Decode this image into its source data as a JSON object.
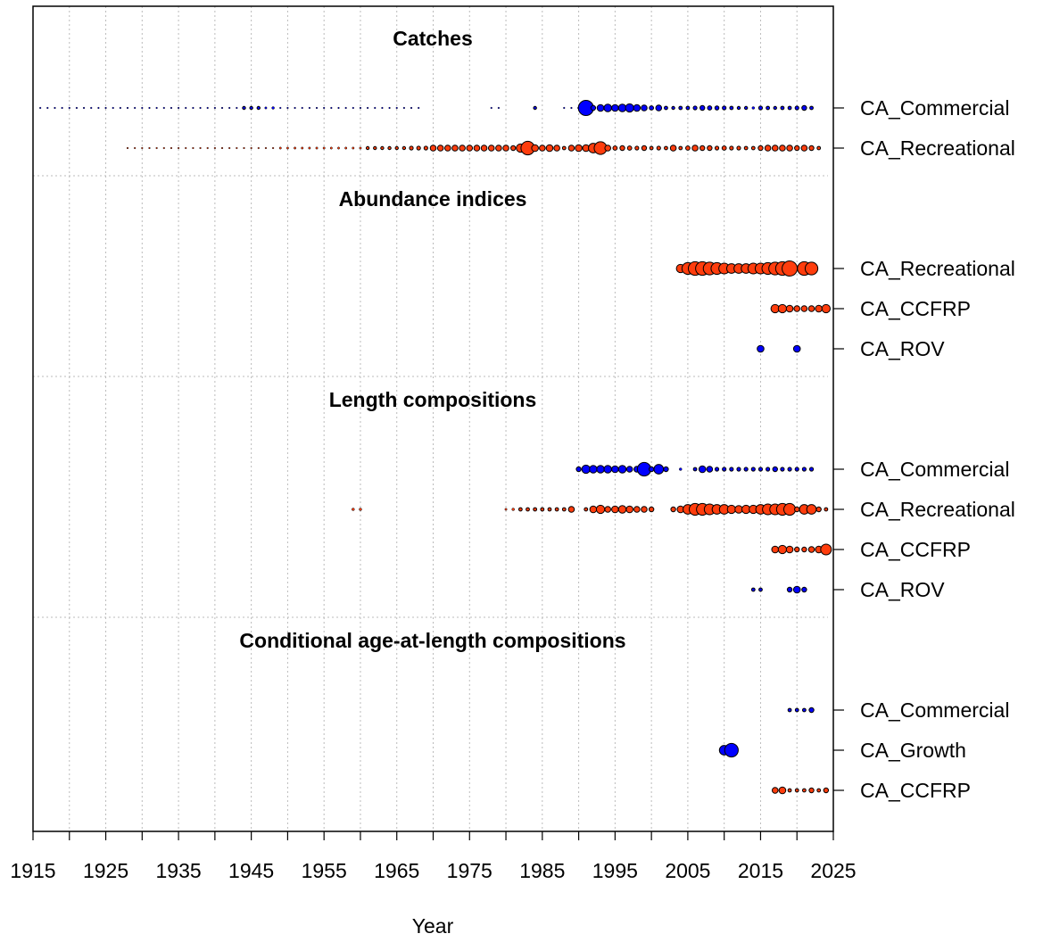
{
  "chart_data": {
    "type": "bubble",
    "xlabel": "Year",
    "xlim": [
      1915,
      2025
    ],
    "xticks": [
      1915,
      1925,
      1935,
      1945,
      1955,
      1965,
      1975,
      1985,
      1995,
      2005,
      2015,
      2025
    ],
    "minor_xticks": [
      1920,
      1930,
      1940,
      1950,
      1960,
      1970,
      1980,
      1990,
      2000,
      2010,
      2020
    ],
    "grid": true,
    "groups": [
      {
        "title": "Catches",
        "series": [
          {
            "name": "CA_Commercial",
            "color": "#0000ff",
            "x": [
              1916,
              1917,
              1918,
              1919,
              1920,
              1921,
              1922,
              1923,
              1924,
              1925,
              1926,
              1927,
              1928,
              1929,
              1930,
              1931,
              1932,
              1933,
              1934,
              1935,
              1936,
              1937,
              1938,
              1939,
              1940,
              1941,
              1942,
              1943,
              1944,
              1945,
              1946,
              1947,
              1948,
              1949,
              1950,
              1951,
              1952,
              1953,
              1954,
              1955,
              1956,
              1957,
              1958,
              1959,
              1960,
              1961,
              1962,
              1963,
              1964,
              1965,
              1966,
              1967,
              1968,
              1978,
              1979,
              1984,
              1988,
              1989,
              1990,
              1991,
              1992,
              1993,
              1994,
              1995,
              1996,
              1997,
              1998,
              1999,
              2000,
              2001,
              2002,
              2003,
              2004,
              2005,
              2006,
              2007,
              2008,
              2009,
              2010,
              2011,
              2012,
              2013,
              2014,
              2015,
              2016,
              2017,
              2018,
              2019,
              2020,
              2021,
              2022
            ],
            "values": [
              0.01,
              0.01,
              0.01,
              0.01,
              0.01,
              0.01,
              0.01,
              0.01,
              0.01,
              0.01,
              0.01,
              0.01,
              0.01,
              0.01,
              0.01,
              0.01,
              0.01,
              0.01,
              0.01,
              0.01,
              0.01,
              0.01,
              0.01,
              0.01,
              0.01,
              0.01,
              0.01,
              0.01,
              0.04,
              0.04,
              0.04,
              0.02,
              0.03,
              0.01,
              0.01,
              0.01,
              0.01,
              0.01,
              0.01,
              0.01,
              0.01,
              0.01,
              0.01,
              0.01,
              0.01,
              0.01,
              0.01,
              0.01,
              0.01,
              0.01,
              0.01,
              0.01,
              0.01,
              0.01,
              0.01,
              0.04,
              0.01,
              0.01,
              0.02,
              1.0,
              0.1,
              0.2,
              0.25,
              0.2,
              0.25,
              0.3,
              0.2,
              0.15,
              0.08,
              0.15,
              0.05,
              0.04,
              0.05,
              0.05,
              0.06,
              0.1,
              0.08,
              0.07,
              0.06,
              0.05,
              0.04,
              0.04,
              0.03,
              0.06,
              0.05,
              0.04,
              0.05,
              0.05,
              0.06,
              0.1,
              0.05
            ]
          },
          {
            "name": "CA_Recreational",
            "color": "#ff3d0d",
            "x": [
              1928,
              1929,
              1930,
              1931,
              1932,
              1933,
              1934,
              1935,
              1936,
              1937,
              1938,
              1939,
              1940,
              1941,
              1942,
              1943,
              1944,
              1945,
              1946,
              1947,
              1948,
              1949,
              1950,
              1951,
              1952,
              1953,
              1954,
              1955,
              1956,
              1957,
              1958,
              1959,
              1960,
              1961,
              1962,
              1963,
              1964,
              1965,
              1966,
              1967,
              1968,
              1969,
              1970,
              1971,
              1972,
              1973,
              1974,
              1975,
              1976,
              1977,
              1978,
              1979,
              1980,
              1981,
              1982,
              1983,
              1984,
              1985,
              1986,
              1987,
              1988,
              1989,
              1990,
              1991,
              1992,
              1993,
              1994,
              1995,
              1996,
              1997,
              1998,
              1999,
              2000,
              2001,
              2002,
              2003,
              2004,
              2005,
              2006,
              2007,
              2008,
              2009,
              2010,
              2011,
              2012,
              2013,
              2014,
              2015,
              2016,
              2017,
              2018,
              2019,
              2020,
              2021,
              2022,
              2023
            ],
            "values": [
              0.01,
              0.01,
              0.01,
              0.01,
              0.01,
              0.01,
              0.01,
              0.01,
              0.01,
              0.01,
              0.01,
              0.01,
              0.01,
              0.01,
              0.01,
              0.01,
              0.01,
              0.01,
              0.01,
              0.01,
              0.01,
              0.02,
              0.02,
              0.02,
              0.02,
              0.02,
              0.02,
              0.02,
              0.02,
              0.02,
              0.02,
              0.02,
              0.02,
              0.04,
              0.04,
              0.04,
              0.04,
              0.04,
              0.04,
              0.06,
              0.06,
              0.06,
              0.15,
              0.15,
              0.15,
              0.15,
              0.15,
              0.15,
              0.15,
              0.15,
              0.15,
              0.15,
              0.15,
              0.1,
              0.3,
              0.8,
              0.2,
              0.15,
              0.2,
              0.15,
              0.05,
              0.15,
              0.2,
              0.2,
              0.4,
              0.7,
              0.15,
              0.08,
              0.1,
              0.08,
              0.06,
              0.1,
              0.05,
              0.06,
              0.05,
              0.15,
              0.05,
              0.08,
              0.15,
              0.1,
              0.1,
              0.06,
              0.08,
              0.06,
              0.06,
              0.05,
              0.05,
              0.1,
              0.15,
              0.15,
              0.15,
              0.15,
              0.1,
              0.15,
              0.1,
              0.05
            ]
          }
        ]
      },
      {
        "title": "Abundance indices",
        "series": [
          {
            "name": "CA_Recreational",
            "color": "#ff3d0d",
            "x": [
              2004,
              2005,
              2006,
              2007,
              2008,
              2009,
              2010,
              2011,
              2012,
              2013,
              2014,
              2015,
              2016,
              2017,
              2018,
              2019,
              2021,
              2022
            ],
            "values": [
              0.3,
              0.6,
              0.8,
              0.8,
              0.7,
              0.6,
              0.5,
              0.4,
              0.4,
              0.4,
              0.5,
              0.5,
              0.6,
              0.7,
              0.8,
              1.0,
              0.8,
              0.7
            ]
          },
          {
            "name": "CA_CCFRP",
            "color": "#ff3d0d",
            "x": [
              2017,
              2018,
              2019,
              2020,
              2021,
              2022,
              2023,
              2024
            ],
            "values": [
              0.3,
              0.3,
              0.2,
              0.15,
              0.15,
              0.15,
              0.2,
              0.3
            ]
          },
          {
            "name": "CA_ROV",
            "color": "#0000ff",
            "x": [
              2015,
              2020
            ],
            "values": [
              0.2,
              0.2
            ]
          }
        ]
      },
      {
        "title": "Length compositions",
        "series": [
          {
            "name": "CA_Commercial",
            "color": "#0000ff",
            "x": [
              1990,
              1991,
              1992,
              1993,
              1994,
              1995,
              1996,
              1997,
              1998,
              1999,
              2000,
              2001,
              2002,
              2004,
              2006,
              2007,
              2008,
              2009,
              2010,
              2011,
              2012,
              2013,
              2014,
              2015,
              2016,
              2017,
              2018,
              2019,
              2020,
              2021,
              2022
            ],
            "values": [
              0.1,
              0.3,
              0.25,
              0.25,
              0.25,
              0.2,
              0.25,
              0.15,
              0.15,
              0.8,
              0.1,
              0.4,
              0.1,
              0.03,
              0.05,
              0.2,
              0.15,
              0.06,
              0.06,
              0.06,
              0.06,
              0.06,
              0.06,
              0.06,
              0.06,
              0.1,
              0.06,
              0.06,
              0.06,
              0.06,
              0.06
            ]
          },
          {
            "name": "CA_Recreational",
            "color": "#ff3d0d",
            "x": [
              1959,
              1960,
              1980,
              1981,
              1982,
              1983,
              1984,
              1985,
              1986,
              1987,
              1988,
              1989,
              1991,
              1992,
              1993,
              1994,
              1995,
              1996,
              1997,
              1998,
              1999,
              2000,
              2003,
              2004,
              2005,
              2006,
              2007,
              2008,
              2009,
              2010,
              2011,
              2012,
              2013,
              2014,
              2015,
              2016,
              2017,
              2018,
              2019,
              2020,
              2021,
              2022,
              2023,
              2024
            ],
            "values": [
              0.03,
              0.03,
              0.02,
              0.03,
              0.05,
              0.05,
              0.05,
              0.05,
              0.05,
              0.05,
              0.05,
              0.15,
              0.05,
              0.2,
              0.3,
              0.15,
              0.2,
              0.25,
              0.2,
              0.15,
              0.15,
              0.1,
              0.1,
              0.2,
              0.4,
              0.6,
              0.6,
              0.5,
              0.4,
              0.4,
              0.3,
              0.25,
              0.3,
              0.3,
              0.4,
              0.5,
              0.5,
              0.6,
              0.6,
              0.1,
              0.4,
              0.4,
              0.1,
              0.05
            ]
          },
          {
            "name": "CA_CCFRP",
            "color": "#ff3d0d",
            "x": [
              2017,
              2018,
              2019,
              2020,
              2021,
              2022,
              2023,
              2024
            ],
            "values": [
              0.2,
              0.3,
              0.2,
              0.1,
              0.1,
              0.15,
              0.2,
              0.5
            ]
          },
          {
            "name": "CA_ROV",
            "color": "#0000ff",
            "x": [
              2014,
              2015,
              2019,
              2020,
              2021
            ],
            "values": [
              0.05,
              0.05,
              0.1,
              0.2,
              0.1
            ]
          }
        ]
      },
      {
        "title": "Conditional age-at-length compositions",
        "series": [
          {
            "name": "CA_Commercial",
            "color": "#0000ff",
            "x": [
              2019,
              2020,
              2021,
              2022
            ],
            "values": [
              0.05,
              0.05,
              0.05,
              0.1
            ]
          },
          {
            "name": "CA_Growth",
            "color": "#0000ff",
            "x": [
              2010,
              2011
            ],
            "values": [
              0.4,
              0.8
            ]
          },
          {
            "name": "CA_CCFRP",
            "color": "#ff3d0d",
            "x": [
              2017,
              2018,
              2019,
              2020,
              2021,
              2022,
              2023,
              2024
            ],
            "values": [
              0.15,
              0.2,
              0.05,
              0.05,
              0.05,
              0.1,
              0.05,
              0.1
            ]
          }
        ]
      }
    ]
  }
}
